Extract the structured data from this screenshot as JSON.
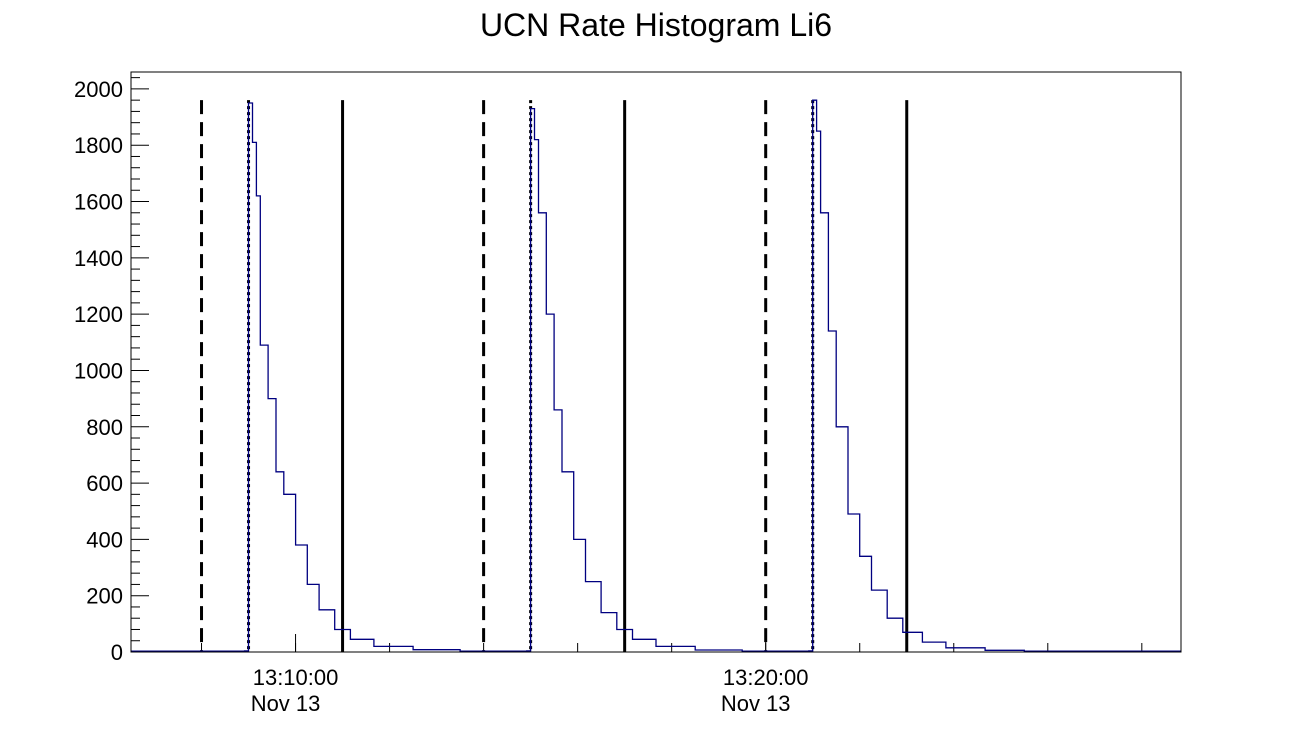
{
  "chart_data": {
    "type": "line",
    "title": "UCN Rate Histogram Li6",
    "xlabel": "",
    "ylabel": "",
    "x_axis_kind": "datetime",
    "xlim": [
      "2019-11-13T13:06:30",
      "2019-11-13T13:28:50"
    ],
    "ylim": [
      0,
      2060
    ],
    "y_ticks": [
      0,
      200,
      400,
      600,
      800,
      1000,
      1200,
      1400,
      1600,
      1800,
      2000
    ],
    "x_ticks": [
      {
        "time": "2019-11-13T13:10:00",
        "label": "13:10:00",
        "date_label": "Nov 13"
      },
      {
        "time": "2019-11-13T13:20:00",
        "label": "13:20:00",
        "date_label": "Nov 13"
      }
    ],
    "grid": false,
    "legend": "none",
    "line_color": "#000080",
    "series": [
      {
        "points": [
          [
            "2019-11-13T13:06:30",
            3
          ],
          [
            "2019-11-13T13:07:30",
            3
          ],
          [
            "2019-11-13T13:08:00",
            3
          ],
          [
            "2019-11-13T13:08:55",
            4
          ],
          [
            "2019-11-13T13:09:00",
            1950
          ],
          [
            "2019-11-13T13:09:05",
            1810
          ],
          [
            "2019-11-13T13:09:10",
            1620
          ],
          [
            "2019-11-13T13:09:15",
            1090
          ],
          [
            "2019-11-13T13:09:25",
            900
          ],
          [
            "2019-11-13T13:09:35",
            640
          ],
          [
            "2019-11-13T13:09:45",
            560
          ],
          [
            "2019-11-13T13:10:00",
            380
          ],
          [
            "2019-11-13T13:10:15",
            240
          ],
          [
            "2019-11-13T13:10:30",
            150
          ],
          [
            "2019-11-13T13:10:50",
            80
          ],
          [
            "2019-11-13T13:11:10",
            45
          ],
          [
            "2019-11-13T13:11:40",
            20
          ],
          [
            "2019-11-13T13:12:30",
            8
          ],
          [
            "2019-11-13T13:13:30",
            3
          ],
          [
            "2019-11-13T13:14:30",
            3
          ],
          [
            "2019-11-13T13:14:55",
            4
          ],
          [
            "2019-11-13T13:15:00",
            1930
          ],
          [
            "2019-11-13T13:15:05",
            1820
          ],
          [
            "2019-11-13T13:15:10",
            1560
          ],
          [
            "2019-11-13T13:15:20",
            1200
          ],
          [
            "2019-11-13T13:15:30",
            860
          ],
          [
            "2019-11-13T13:15:40",
            640
          ],
          [
            "2019-11-13T13:15:55",
            400
          ],
          [
            "2019-11-13T13:16:10",
            250
          ],
          [
            "2019-11-13T13:16:30",
            140
          ],
          [
            "2019-11-13T13:16:50",
            80
          ],
          [
            "2019-11-13T13:17:10",
            45
          ],
          [
            "2019-11-13T13:17:40",
            20
          ],
          [
            "2019-11-13T13:18:30",
            7
          ],
          [
            "2019-11-13T13:19:30",
            3
          ],
          [
            "2019-11-13T13:20:30",
            3
          ],
          [
            "2019-11-13T13:20:55",
            4
          ],
          [
            "2019-11-13T13:21:00",
            1960
          ],
          [
            "2019-11-13T13:21:05",
            1850
          ],
          [
            "2019-11-13T13:21:10",
            1560
          ],
          [
            "2019-11-13T13:21:20",
            1140
          ],
          [
            "2019-11-13T13:21:30",
            800
          ],
          [
            "2019-11-13T13:21:45",
            490
          ],
          [
            "2019-11-13T13:22:00",
            340
          ],
          [
            "2019-11-13T13:22:15",
            220
          ],
          [
            "2019-11-13T13:22:35",
            120
          ],
          [
            "2019-11-13T13:22:55",
            70
          ],
          [
            "2019-11-13T13:23:20",
            35
          ],
          [
            "2019-11-13T13:23:50",
            15
          ],
          [
            "2019-11-13T13:24:40",
            6
          ],
          [
            "2019-11-13T13:25:30",
            3
          ],
          [
            "2019-11-13T13:27:00",
            3
          ],
          [
            "2019-11-13T13:28:50",
            3
          ]
        ]
      }
    ],
    "markers": [
      {
        "time": "2019-11-13T13:08:00",
        "style": "dashed"
      },
      {
        "time": "2019-11-13T13:09:00",
        "style": "dotted"
      },
      {
        "time": "2019-11-13T13:11:00",
        "style": "solid"
      },
      {
        "time": "2019-11-13T13:14:00",
        "style": "dashed"
      },
      {
        "time": "2019-11-13T13:15:00",
        "style": "dotted"
      },
      {
        "time": "2019-11-13T13:17:00",
        "style": "solid"
      },
      {
        "time": "2019-11-13T13:20:00",
        "style": "dashed"
      },
      {
        "time": "2019-11-13T13:21:00",
        "style": "dotted"
      },
      {
        "time": "2019-11-13T13:23:00",
        "style": "solid"
      }
    ],
    "marker_top_value": 1960
  }
}
